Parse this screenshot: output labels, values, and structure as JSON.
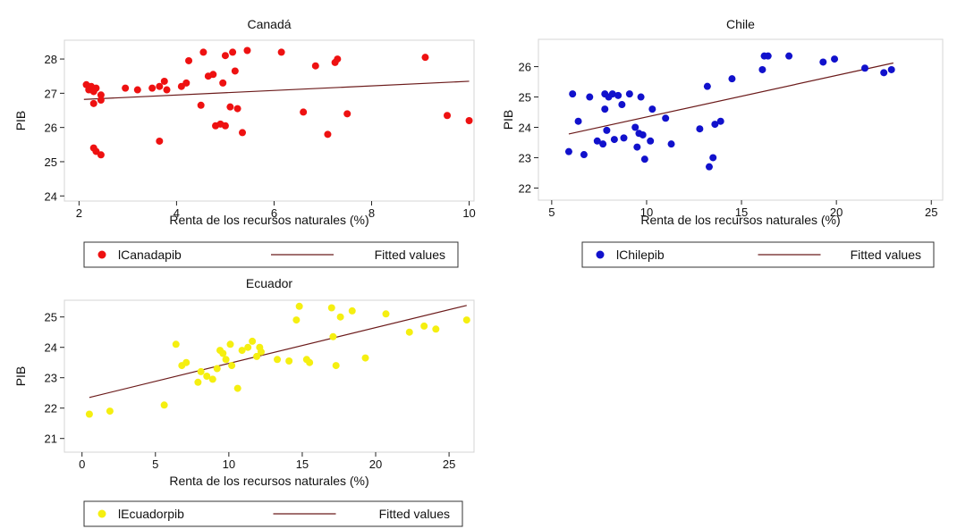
{
  "chart_data": [
    {
      "type": "scatter",
      "title": "Canadá",
      "xlabel": "Renta de los recursos naturales (%)",
      "ylabel": "PIB",
      "xlim": [
        1.7,
        10.1
      ],
      "ylim": [
        23.85,
        28.55
      ],
      "xticks": [
        2,
        4,
        6,
        8,
        10
      ],
      "yticks": [
        24,
        25,
        26,
        27,
        28
      ],
      "marker_color": "#ee1111",
      "line_color": "#6b1a1a",
      "legend": [
        "lCanadapib",
        "Fitted values"
      ],
      "fit": {
        "x": [
          2.1,
          10.0
        ],
        "y": [
          26.82,
          27.35
        ]
      },
      "points": [
        [
          2.15,
          27.25
        ],
        [
          2.2,
          27.1
        ],
        [
          2.25,
          27.2
        ],
        [
          2.3,
          27.05
        ],
        [
          2.35,
          27.15
        ],
        [
          2.3,
          26.7
        ],
        [
          2.45,
          26.95
        ],
        [
          2.45,
          26.8
        ],
        [
          2.3,
          25.4
        ],
        [
          2.35,
          25.3
        ],
        [
          2.45,
          25.2
        ],
        [
          2.95,
          27.15
        ],
        [
          3.2,
          27.1
        ],
        [
          3.5,
          27.15
        ],
        [
          3.65,
          27.2
        ],
        [
          3.75,
          27.35
        ],
        [
          3.8,
          27.1
        ],
        [
          3.65,
          25.6
        ],
        [
          4.1,
          27.2
        ],
        [
          4.2,
          27.3
        ],
        [
          4.25,
          27.95
        ],
        [
          4.55,
          28.2
        ],
        [
          4.5,
          26.65
        ],
        [
          4.65,
          27.5
        ],
        [
          4.75,
          27.55
        ],
        [
          4.8,
          26.05
        ],
        [
          4.9,
          26.1
        ],
        [
          5.0,
          26.05
        ],
        [
          4.95,
          27.3
        ],
        [
          5.0,
          28.1
        ],
        [
          5.1,
          26.6
        ],
        [
          5.15,
          28.2
        ],
        [
          5.2,
          27.65
        ],
        [
          5.25,
          26.55
        ],
        [
          5.35,
          25.85
        ],
        [
          5.45,
          28.25
        ],
        [
          6.15,
          28.2
        ],
        [
          6.6,
          26.45
        ],
        [
          6.85,
          27.8
        ],
        [
          7.1,
          25.8
        ],
        [
          7.25,
          27.9
        ],
        [
          7.3,
          28.0
        ],
        [
          7.5,
          26.4
        ],
        [
          9.1,
          28.05
        ],
        [
          9.55,
          26.35
        ],
        [
          10.0,
          26.2
        ]
      ]
    },
    {
      "type": "scatter",
      "title": "Chile",
      "xlabel": "Renta de los recursos naturales (%)",
      "ylabel": "PIB",
      "xlim": [
        4.3,
        25.6
      ],
      "ylim": [
        21.6,
        26.9
      ],
      "xticks": [
        5,
        10,
        15,
        20,
        25
      ],
      "yticks": [
        22,
        23,
        24,
        25,
        26
      ],
      "marker_color": "#1111cc",
      "line_color": "#6b1a1a",
      "legend": [
        "lChilepib",
        "Fitted values"
      ],
      "fit": {
        "x": [
          5.9,
          23.0
        ],
        "y": [
          23.78,
          26.12
        ]
      },
      "points": [
        [
          5.9,
          23.2
        ],
        [
          6.1,
          25.1
        ],
        [
          6.4,
          24.2
        ],
        [
          6.7,
          23.1
        ],
        [
          7.0,
          25.0
        ],
        [
          7.4,
          23.55
        ],
        [
          7.7,
          23.45
        ],
        [
          7.8,
          25.1
        ],
        [
          7.8,
          24.6
        ],
        [
          7.9,
          23.9
        ],
        [
          8.0,
          25.0
        ],
        [
          8.2,
          25.1
        ],
        [
          8.3,
          23.6
        ],
        [
          8.5,
          25.05
        ],
        [
          8.7,
          24.75
        ],
        [
          8.8,
          23.65
        ],
        [
          9.1,
          25.1
        ],
        [
          9.4,
          24.0
        ],
        [
          9.5,
          23.35
        ],
        [
          9.6,
          23.8
        ],
        [
          9.7,
          25.0
        ],
        [
          9.8,
          23.75
        ],
        [
          9.9,
          22.95
        ],
        [
          10.2,
          23.55
        ],
        [
          10.3,
          24.6
        ],
        [
          11.0,
          24.3
        ],
        [
          11.3,
          23.45
        ],
        [
          12.8,
          23.95
        ],
        [
          13.2,
          25.35
        ],
        [
          13.3,
          22.7
        ],
        [
          13.5,
          23.0
        ],
        [
          13.6,
          24.1
        ],
        [
          13.9,
          24.2
        ],
        [
          14.5,
          25.6
        ],
        [
          16.1,
          25.9
        ],
        [
          16.2,
          26.35
        ],
        [
          16.4,
          26.35
        ],
        [
          17.5,
          26.35
        ],
        [
          19.3,
          26.15
        ],
        [
          19.9,
          26.25
        ],
        [
          21.5,
          25.95
        ],
        [
          22.5,
          25.8
        ],
        [
          22.9,
          25.9
        ]
      ]
    },
    {
      "type": "scatter",
      "title": "Ecuador",
      "xlabel": "Renta de los recursos naturales (%)",
      "ylabel": "PIB",
      "xlim": [
        -1.2,
        26.7
      ],
      "ylim": [
        20.55,
        25.55
      ],
      "xticks": [
        0,
        5,
        10,
        15,
        20,
        25
      ],
      "yticks": [
        21,
        22,
        23,
        24,
        25
      ],
      "marker_color": "#f5ef10",
      "line_color": "#6b1a1a",
      "legend": [
        "lEcuadorpib",
        "Fitted values"
      ],
      "fit": {
        "x": [
          0.5,
          26.2
        ],
        "y": [
          22.35,
          25.38
        ]
      },
      "points": [
        [
          0.5,
          21.8
        ],
        [
          1.9,
          21.9
        ],
        [
          5.6,
          22.1
        ],
        [
          6.4,
          24.1
        ],
        [
          6.8,
          23.4
        ],
        [
          7.1,
          23.5
        ],
        [
          7.9,
          22.85
        ],
        [
          8.1,
          23.2
        ],
        [
          8.5,
          23.05
        ],
        [
          8.9,
          22.95
        ],
        [
          9.2,
          23.3
        ],
        [
          9.4,
          23.9
        ],
        [
          9.6,
          23.8
        ],
        [
          9.8,
          23.6
        ],
        [
          10.1,
          24.1
        ],
        [
          10.2,
          23.4
        ],
        [
          10.6,
          22.65
        ],
        [
          10.9,
          23.9
        ],
        [
          11.3,
          24.0
        ],
        [
          11.6,
          24.2
        ],
        [
          11.9,
          23.7
        ],
        [
          12.2,
          23.85
        ],
        [
          12.1,
          24.0
        ],
        [
          13.3,
          23.6
        ],
        [
          14.1,
          23.55
        ],
        [
          14.6,
          24.9
        ],
        [
          14.8,
          25.35
        ],
        [
          15.3,
          23.6
        ],
        [
          15.5,
          23.5
        ],
        [
          17.0,
          25.3
        ],
        [
          17.1,
          24.35
        ],
        [
          17.3,
          23.4
        ],
        [
          17.6,
          25.0
        ],
        [
          18.4,
          25.2
        ],
        [
          19.3,
          23.65
        ],
        [
          20.7,
          25.1
        ],
        [
          22.3,
          24.5
        ],
        [
          23.3,
          24.7
        ],
        [
          24.1,
          24.6
        ],
        [
          26.2,
          24.9
        ]
      ]
    }
  ]
}
